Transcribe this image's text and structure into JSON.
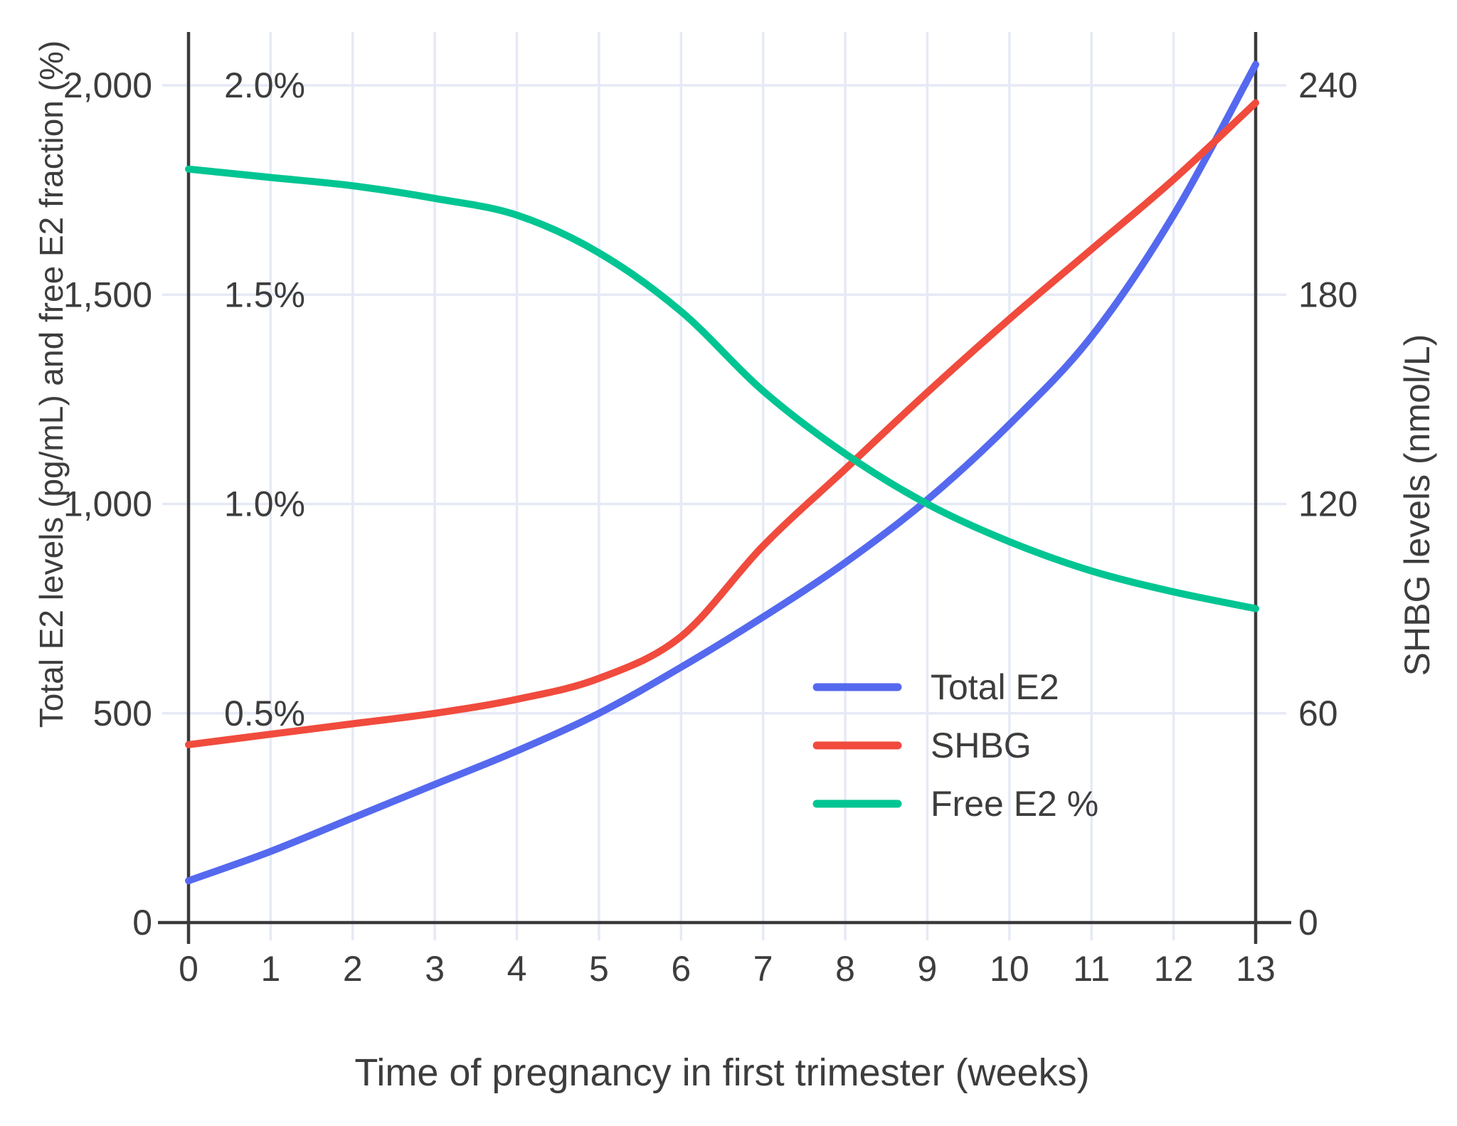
{
  "chart_data": {
    "type": "line",
    "title": "",
    "xlabel": "Time of pregnancy in first trimester (weeks)",
    "ylabel_left": "Total E2 levels (pg/mL) and free E2 fraction (%)",
    "ylabel_right": "SHBG levels (nmol/L)",
    "x": [
      0,
      1,
      2,
      3,
      4,
      5,
      6,
      7,
      8,
      9,
      10,
      11,
      12,
      13
    ],
    "xlim": [
      0,
      13
    ],
    "ylim_left": [
      0,
      2000
    ],
    "ylim_left_percent": [
      0,
      2.0
    ],
    "ylim_right": [
      0,
      240
    ],
    "grid": true,
    "legend_position": "inside-right",
    "series": [
      {
        "name": "Total E2",
        "axis": "left",
        "units": "pg/mL",
        "color": "#5569ef",
        "values": [
          100,
          170,
          250,
          330,
          410,
          500,
          610,
          730,
          860,
          1010,
          1190,
          1400,
          1690,
          2050
        ]
      },
      {
        "name": "SHBG",
        "axis": "right",
        "units": "nmol/L",
        "color": "#f04b3d",
        "values": [
          51,
          54,
          57,
          60,
          64,
          70,
          82,
          108,
          130,
          152,
          173,
          193,
          213,
          235
        ]
      },
      {
        "name": "Free E2 %",
        "axis": "left-percent",
        "units": "%",
        "color": "#00c592",
        "values": [
          1.8,
          1.78,
          1.76,
          1.73,
          1.69,
          1.6,
          1.46,
          1.27,
          1.12,
          1.0,
          0.91,
          0.84,
          0.79,
          0.75
        ]
      }
    ],
    "axis_ticks": {
      "left": [
        {
          "v": 0,
          "label": "0"
        },
        {
          "v": 500,
          "label": "500"
        },
        {
          "v": 1000,
          "label": "1,000"
        },
        {
          "v": 1500,
          "label": "1,500"
        },
        {
          "v": 2000,
          "label": "2,000"
        }
      ],
      "left_percent": [
        {
          "v": 500,
          "label": "0.5%"
        },
        {
          "v": 1000,
          "label": "1.0%"
        },
        {
          "v": 1500,
          "label": "1.5%"
        },
        {
          "v": 2000,
          "label": "2.0%"
        }
      ],
      "right": [
        {
          "v": 0,
          "label": "0"
        },
        {
          "v": 60,
          "label": "60"
        },
        {
          "v": 120,
          "label": "120"
        },
        {
          "v": 180,
          "label": "180"
        },
        {
          "v": 240,
          "label": "240"
        }
      ],
      "x": [
        {
          "v": 0,
          "label": "0"
        },
        {
          "v": 1,
          "label": "1"
        },
        {
          "v": 2,
          "label": "2"
        },
        {
          "v": 3,
          "label": "3"
        },
        {
          "v": 4,
          "label": "4"
        },
        {
          "v": 5,
          "label": "5"
        },
        {
          "v": 6,
          "label": "6"
        },
        {
          "v": 7,
          "label": "7"
        },
        {
          "v": 8,
          "label": "8"
        },
        {
          "v": 9,
          "label": "9"
        },
        {
          "v": 10,
          "label": "10"
        },
        {
          "v": 11,
          "label": "11"
        },
        {
          "v": 12,
          "label": "12"
        },
        {
          "v": 13,
          "label": "13"
        }
      ]
    },
    "colors": {
      "grid": "#e6eaf6",
      "axis": "#3a3a3a",
      "text": "#3d3d3d",
      "background": "#ffffff",
      "total_e2": "#5569ef",
      "shbg": "#f04b3d",
      "free_e2": "#00c592"
    }
  }
}
